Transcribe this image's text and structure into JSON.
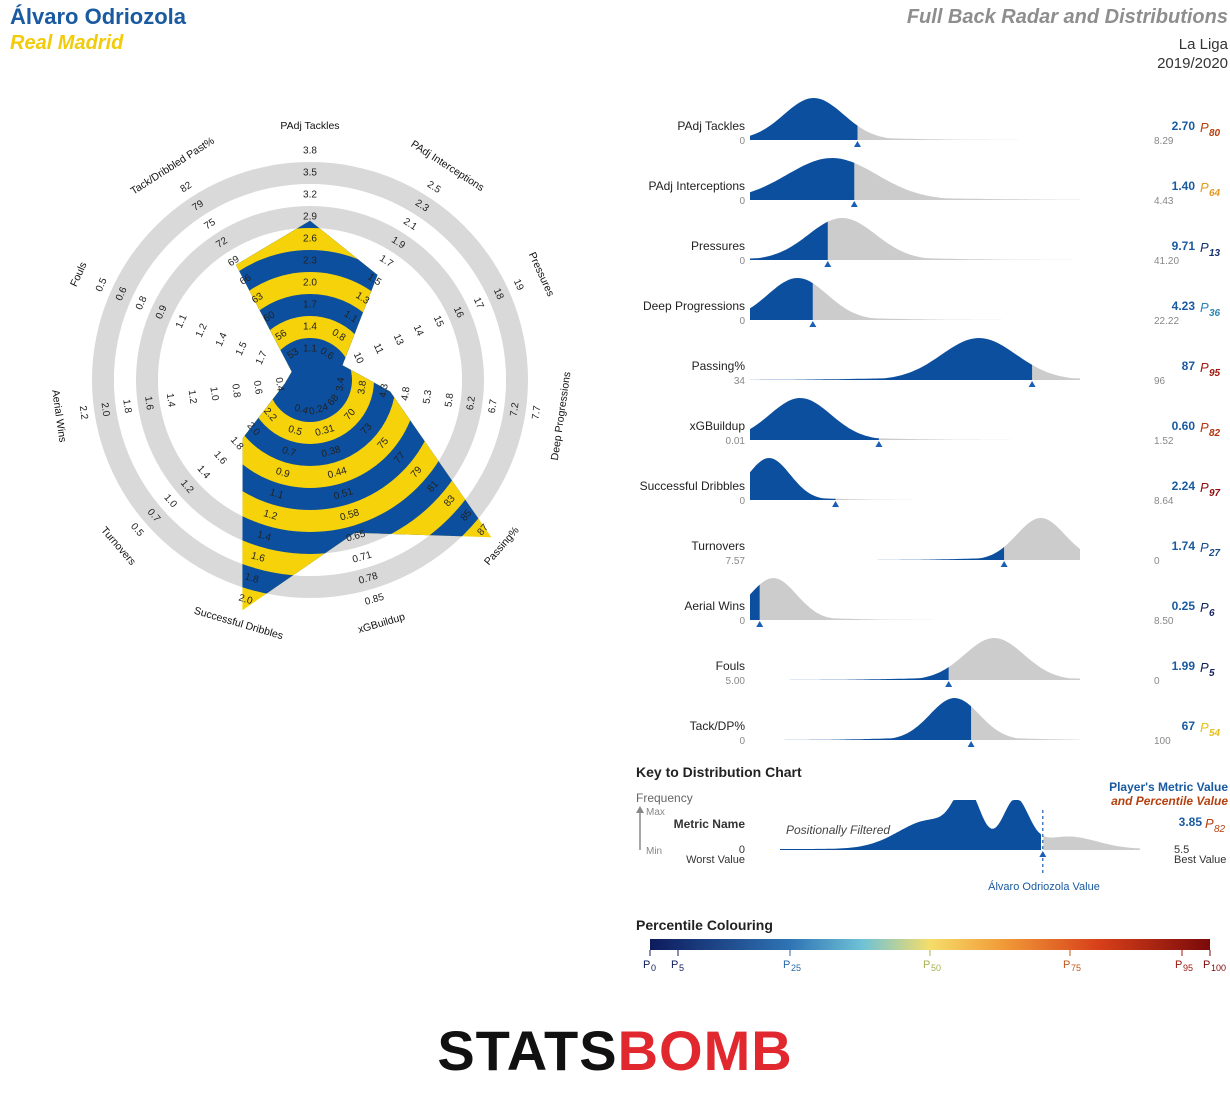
{
  "header": {
    "player_name": "Álvaro Odriozola",
    "team_name": "Real Madrid",
    "title": "Full Back Radar and Distributions",
    "league": "La Liga",
    "season": "2019/2020"
  },
  "colors": {
    "blue": "#0d4f9f",
    "yellow": "#f5d20a",
    "ring_grey": "#d9d9d9",
    "dist_grey": "#cccccc",
    "triangle": "#1a5fb4"
  },
  "chart_data": [
    {
      "type": "radar",
      "axes": [
        {
          "label": "PAdj Tackles",
          "ticks": [
            "1.1",
            "1.4",
            "1.7",
            "2.0",
            "2.3",
            "2.6",
            "2.9",
            "3.2",
            "3.5",
            "3.8"
          ],
          "inner_min": 0.8,
          "max": 3.8,
          "value": 2.7
        },
        {
          "label": "PAdj Interceptions",
          "ticks": [
            "0.6",
            "0.8",
            "1.1",
            "1.3",
            "1.5",
            "1.7",
            "1.9",
            "2.1",
            "2.3",
            "2.5"
          ],
          "inner_min": 0.4,
          "max": 2.5,
          "value": 1.4
        },
        {
          "label": "Pressures",
          "ticks": [
            "10",
            "11",
            "13",
            "14",
            "15",
            "16",
            "17",
            "18",
            "19"
          ],
          "inner_min": 9,
          "max": 19,
          "value": 9.71
        },
        {
          "label": "Deep Progressions",
          "ticks": [
            "3.4",
            "3.8",
            "4.3",
            "4.8",
            "5.3",
            "5.8",
            "6.2",
            "6.7",
            "7.2",
            "7.7"
          ],
          "inner_min": 2.9,
          "max": 7.7,
          "value": 4.23
        },
        {
          "label": "Passing%",
          "ticks": [
            "68",
            "70",
            "73",
            "75",
            "77",
            "79",
            "81",
            "83",
            "85",
            "87"
          ],
          "inner_min": 66,
          "max": 87,
          "value": 87
        },
        {
          "label": "xGBuildup",
          "ticks": [
            "0.24",
            "0.31",
            "0.38",
            "0.44",
            "0.51",
            "0.58",
            "0.65",
            "0.71",
            "0.78",
            "0.85"
          ],
          "inner_min": 0.17,
          "max": 0.85,
          "value": 0.6
        },
        {
          "label": "Successful Dribbles",
          "ticks": [
            "0.4",
            "0.5",
            "0.7",
            "0.9",
            "1.1",
            "1.2",
            "1.4",
            "1.6",
            "1.8",
            "2.0"
          ],
          "inner_min": 0.2,
          "max": 2.0,
          "value": 2.24
        },
        {
          "label": "Turnovers",
          "ticks": [
            "2.2",
            "2.0",
            "1.8",
            "1.6",
            "1.4",
            "1.2",
            "1.0",
            "0.7",
            "0.5"
          ],
          "inner_min": 2.4,
          "max": 0.3,
          "value": 1.74
        },
        {
          "label": "Aerial Wins",
          "ticks": [
            "0.4",
            "0.6",
            "0.8",
            "1.0",
            "1.2",
            "1.4",
            "1.6",
            "1.8",
            "2.0",
            "2.2"
          ],
          "inner_min": 0.2,
          "max": 2.2,
          "value": 0.25
        },
        {
          "label": "Fouls",
          "ticks": [
            "1.7",
            "1.5",
            "1.4",
            "1.2",
            "1.1",
            "0.9",
            "0.8",
            "0.6",
            "0.5"
          ],
          "inner_min": 1.9,
          "max": 0.3,
          "value": 1.99
        },
        {
          "label": "Tack/Dribbled Past%",
          "ticks": [
            "53",
            "56",
            "60",
            "63",
            "66",
            "69",
            "72",
            "75",
            "79",
            "82"
          ],
          "inner_min": 50,
          "max": 82,
          "value": 67
        }
      ]
    },
    {
      "type": "area",
      "rows": [
        {
          "name": "PAdj Tackles",
          "left": "0",
          "right": "8.29",
          "value": "2.70",
          "percentile": "80",
          "pcolor": "#b5400e",
          "x0": 0,
          "x1": 8.29,
          "peak": 1.6,
          "sd": 0.75,
          "v": 2.7,
          "peakfrac": 1.0
        },
        {
          "name": "PAdj Interceptions",
          "left": "0",
          "right": "4.43",
          "value": "1.40",
          "percentile": "64",
          "pcolor": "#e39a20",
          "x0": 0,
          "x1": 4.43,
          "peak": 1.1,
          "sd": 0.6,
          "v": 1.4,
          "peakfrac": 1.0
        },
        {
          "name": "Pressures",
          "left": "0",
          "right": "41.20",
          "value": "9.71",
          "percentile": "13",
          "pcolor": "#15306e",
          "x0": 0,
          "x1": 41.2,
          "peak": 11.5,
          "sd": 4.2,
          "v": 9.71,
          "peakfrac": 1.0
        },
        {
          "name": "Deep Progressions",
          "left": "0",
          "right": "22.22",
          "value": "4.23",
          "percentile": "36",
          "pcolor": "#2a86b4",
          "x0": 0,
          "x1": 22.22,
          "peak": 3.2,
          "sd": 2.0,
          "v": 4.23,
          "peakfrac": 1.0
        },
        {
          "name": "Passing%",
          "left": "34",
          "right": "96",
          "value": "87",
          "percentile": "95",
          "pcolor": "#a3190f",
          "x0": 34,
          "x1": 96,
          "peak": 77,
          "sd": 7,
          "v": 87,
          "peakfrac": 1.0
        },
        {
          "name": "xGBuildup",
          "left": "0.01",
          "right": "1.52",
          "value": "0.60",
          "percentile": "82",
          "pcolor": "#b3340e",
          "x0": 0.01,
          "x1": 1.52,
          "peak": 0.24,
          "sd": 0.14,
          "v": 0.6,
          "peakfrac": 1.0
        },
        {
          "name": "Successful Dribbles",
          "left": "0",
          "right": "8.64",
          "value": "2.24",
          "percentile": "97",
          "pcolor": "#8f0d0d",
          "x0": 0,
          "x1": 8.64,
          "peak": 0.5,
          "sd": 0.55,
          "v": 2.24,
          "peakfrac": 1.0
        },
        {
          "name": "Turnovers",
          "left": "7.57",
          "right": "0",
          "value": "1.74",
          "percentile": "27",
          "pcolor": "#174d8e",
          "x0": 7.57,
          "x1": 0,
          "peak": 0.9,
          "sd": 0.55,
          "v": 1.74,
          "peakfrac": 1.0
        },
        {
          "name": "Aerial Wins",
          "left": "0",
          "right": "8.50",
          "value": "0.25",
          "percentile": "6",
          "pcolor": "#12235f",
          "x0": 0,
          "x1": 8.5,
          "peak": 0.6,
          "sd": 0.6,
          "v": 0.25,
          "peakfrac": 1.0
        },
        {
          "name": "Fouls",
          "left": "5.00",
          "right": "0",
          "value": "1.99",
          "percentile": "5",
          "pcolor": "#10205a",
          "x0": 5.0,
          "x1": 0,
          "peak": 1.3,
          "sd": 0.45,
          "v": 1.99,
          "peakfrac": 1.0
        },
        {
          "name": "Tack/DP%",
          "left": "0",
          "right": "100",
          "value": "67",
          "percentile": "54",
          "pcolor": "#e6c017",
          "x0": 0,
          "x1": 100,
          "peak": 62,
          "sd": 7.5,
          "v": 67,
          "peakfrac": 1.0
        }
      ]
    }
  ],
  "key": {
    "title": "Key to Distribution Chart",
    "frequency": "Frequency",
    "max": "Max",
    "min": "Min",
    "metric_name": "Metric Name",
    "worst_num": "0",
    "worst_label": "Worst Value",
    "best_num": "5.5",
    "best_label": "Best Value",
    "filtered": "Positionally Filtered",
    "player_value_label": "Álvaro Odriozola Value",
    "legend_value": "Player's Metric Value",
    "legend_pct": "and Percentile Value",
    "example_value": "3.85",
    "example_percentile": "82"
  },
  "percentile_colouring": {
    "title": "Percentile Colouring",
    "ticks": [
      {
        "p": 0,
        "label": "0",
        "color": "#0d1b5c"
      },
      {
        "p": 5,
        "label": "5",
        "color": "#0d1b5c"
      },
      {
        "p": 25,
        "label": "25",
        "color": "#2868a8"
      },
      {
        "p": 50,
        "label": "50",
        "color": "#a8b050"
      },
      {
        "p": 75,
        "label": "75",
        "color": "#c05a18"
      },
      {
        "p": 95,
        "label": "95",
        "color": "#a0180e"
      },
      {
        "p": 100,
        "label": "100",
        "color": "#7a0a0a"
      }
    ]
  },
  "logo": {
    "part1": "STATS",
    "part2": "BOMB"
  }
}
